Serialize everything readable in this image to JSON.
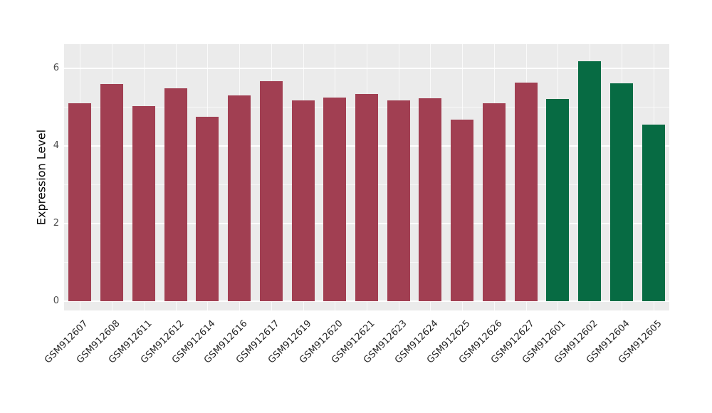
{
  "chart_data": {
    "type": "bar",
    "title": "",
    "xlabel": "",
    "ylabel": "Expression Level",
    "ylim": [
      0,
      6.45
    ],
    "yticks": [
      0,
      2,
      4,
      6
    ],
    "minor_ticks": [
      1,
      3,
      5
    ],
    "grid": "on",
    "legend_position": "none",
    "panel_bg": "#EBEBEB",
    "grid_color": "#FFFFFF",
    "tick_label_color": "#4D4D4D",
    "categories": [
      "GSM912607",
      "GSM912608",
      "GSM912611",
      "GSM912612",
      "GSM912614",
      "GSM912616",
      "GSM912617",
      "GSM912619",
      "GSM912620",
      "GSM912621",
      "GSM912623",
      "GSM912624",
      "GSM912625",
      "GSM912626",
      "GSM912627",
      "GSM912601",
      "GSM912602",
      "GSM912604",
      "GSM912605"
    ],
    "values": [
      5.1,
      5.6,
      5.03,
      5.49,
      4.76,
      5.31,
      5.68,
      5.19,
      5.26,
      5.35,
      5.19,
      5.24,
      4.69,
      5.1,
      5.65,
      5.22,
      6.2,
      5.63,
      4.55
    ],
    "point_colors": [
      "#A13F52",
      "#A13F52",
      "#A13F52",
      "#A13F52",
      "#A13F52",
      "#A13F52",
      "#A13F52",
      "#A13F52",
      "#A13F52",
      "#A13F52",
      "#A13F52",
      "#A13F52",
      "#A13F52",
      "#A13F52",
      "#A13F52",
      "#076B43",
      "#076B43",
      "#076B43",
      "#076B43"
    ]
  }
}
